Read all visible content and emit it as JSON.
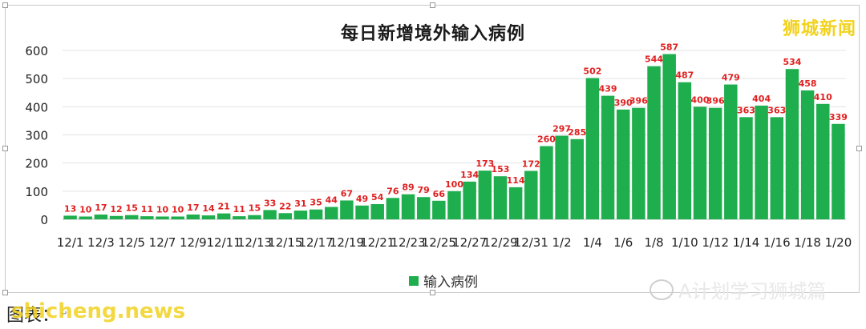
{
  "brand": "狮城新闻",
  "footer": {
    "label": "图表：",
    "overlay": "shicheng.news"
  },
  "wechat_watermark": "A计划学习狮城篇",
  "chart_data": {
    "type": "bar",
    "title": "每日新增境外输入病例",
    "series": [
      {
        "name": "输入病例",
        "color": "#1fae4d",
        "values": [
          13,
          10,
          17,
          12,
          15,
          11,
          10,
          10,
          17,
          14,
          21,
          11,
          15,
          33,
          22,
          31,
          35,
          44,
          67,
          49,
          54,
          76,
          89,
          79,
          66,
          100,
          134,
          173,
          153,
          114,
          172,
          260,
          297,
          285,
          502,
          439,
          390,
          396,
          544,
          587,
          487,
          400,
          396,
          479,
          363,
          404,
          363,
          534,
          458,
          410,
          339
        ]
      }
    ],
    "tick_labels": [
      "12/1",
      "12/3",
      "12/5",
      "12/7",
      "12/9",
      "12/11",
      "12/13",
      "12/15",
      "12/17",
      "12/19",
      "12/21",
      "12/23",
      "12/25",
      "12/27",
      "12/29",
      "12/31",
      "1/2",
      "1/4",
      "1/6",
      "1/8",
      "1/10",
      "1/12",
      "1/14",
      "1/16",
      "1/18",
      "1/20"
    ],
    "yticks": [
      0,
      100,
      200,
      300,
      400,
      500,
      600
    ],
    "ylim": [
      0,
      600
    ],
    "label_color": "#e02020",
    "grid": true,
    "legend": "bottom"
  }
}
